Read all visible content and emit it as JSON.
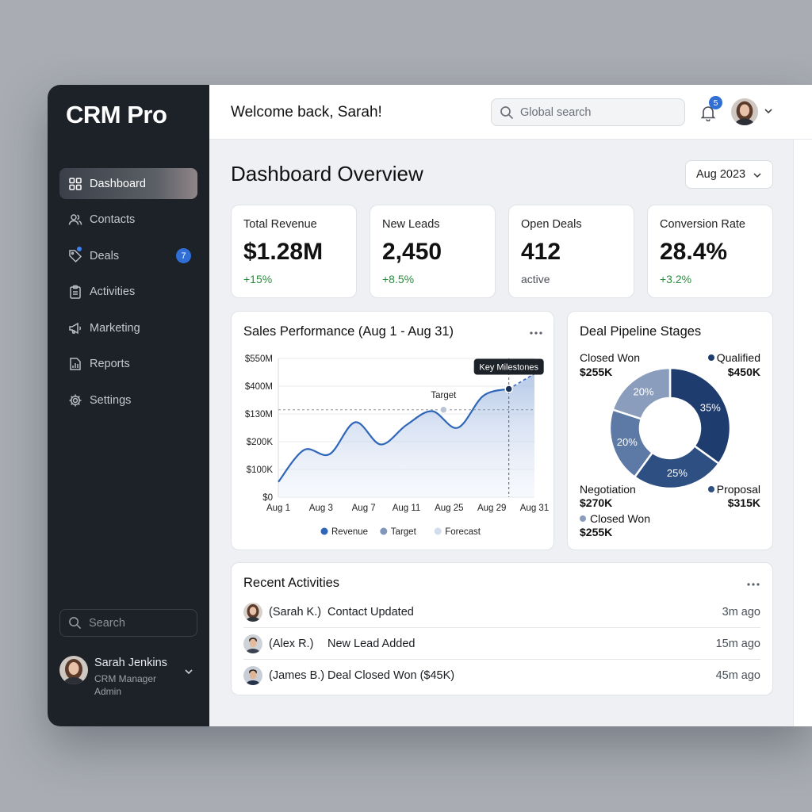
{
  "app": {
    "brand": "CRM Pro"
  },
  "sidebar": {
    "items": [
      {
        "label": "Dashboard",
        "icon": "grid-icon",
        "active": true
      },
      {
        "label": "Contacts",
        "icon": "users-icon"
      },
      {
        "label": "Deals",
        "icon": "tag-icon",
        "badge": "7"
      },
      {
        "label": "Activities",
        "icon": "clipboard-icon"
      },
      {
        "label": "Marketing",
        "icon": "megaphone-icon"
      },
      {
        "label": "Reports",
        "icon": "report-icon"
      },
      {
        "label": "Settings",
        "icon": "gear-icon"
      }
    ],
    "search_placeholder": "Search",
    "profile": {
      "name": "Sarah Jenkins",
      "role": "CRM Manager Admin"
    }
  },
  "header": {
    "welcome": "Welcome back, Sarah!",
    "search_placeholder": "Global search",
    "notification_count": "5"
  },
  "main": {
    "title": "Dashboard Overview",
    "date_filter": "Aug 2023",
    "kpis": [
      {
        "label": "Total Revenue",
        "value": "$1.28M",
        "delta": "+15%"
      },
      {
        "label": "New Leads",
        "value": "2,450",
        "delta": "+8.5%"
      },
      {
        "label": "Open Deals",
        "value": "412",
        "delta": "active"
      },
      {
        "label": "Conversion Rate",
        "value": "28.4%",
        "delta": "+3.2%"
      }
    ],
    "activities": {
      "title": "Recent Activities",
      "rows": [
        {
          "who": "(Sarah K.)",
          "what": "Contact Updated",
          "when": "3m ago"
        },
        {
          "who": "(Alex R.)",
          "what": "New Lead Added",
          "when": "15m ago"
        },
        {
          "who": "(James B.)",
          "what": "Deal Closed Won ($45K)",
          "when": "45m ago"
        }
      ]
    }
  },
  "colors": {
    "accent": "#2f6fd6",
    "positive": "#2a8c3e",
    "navy": "#1f3f73"
  },
  "chart_data": [
    {
      "type": "area",
      "title": "Sales Performance (Aug 1 - Aug 31)",
      "x_ticks": [
        "Aug 1",
        "Aug 3",
        "Aug 7",
        "Aug 11",
        "Aug 25",
        "Aug 29",
        "Aug 31"
      ],
      "y_ticks": [
        "$550M",
        "$400M",
        "$130M",
        "$200K",
        "$100K",
        "$0"
      ],
      "series": [
        {
          "name": "Revenue",
          "color": "#2f66b8",
          "values": [
            0.55,
            1.7,
            1.55,
            2.7,
            1.9,
            2.6,
            3.1,
            2.5,
            3.65,
            3.9
          ]
        },
        {
          "name": "Target",
          "color": "#7f97bb",
          "values": [
            3.15
          ]
        },
        {
          "name": "Forecast",
          "color": "#d2dcec",
          "values": [
            3.9,
            4.45
          ]
        }
      ],
      "annotations": [
        "Key Milestones",
        "Target"
      ],
      "legend": "bottom"
    },
    {
      "type": "pie",
      "title": "Deal Pipeline Stages",
      "slices": [
        {
          "name": "Qualified",
          "value": 35,
          "amount": "$450K",
          "color": "#1e3c6e"
        },
        {
          "name": "Proposal",
          "value": 25,
          "amount": "$315K",
          "color": "#2e4f82"
        },
        {
          "name": "Negotiation",
          "value": 20,
          "amount": "$270K",
          "color": "#5d7aa6"
        },
        {
          "name": "Closed Won",
          "value": 20,
          "amount": "$255K",
          "color": "#8a9dbd"
        }
      ],
      "labels": [
        {
          "name": "Closed Won",
          "amount": "$255K"
        },
        {
          "name": "Qualified",
          "amount": "$450K"
        },
        {
          "name": "Negotiation",
          "amount": "$270K"
        },
        {
          "name": "Proposal",
          "amount": "$315K"
        },
        {
          "name": "Closed Won",
          "amount": "$255K"
        }
      ]
    }
  ]
}
